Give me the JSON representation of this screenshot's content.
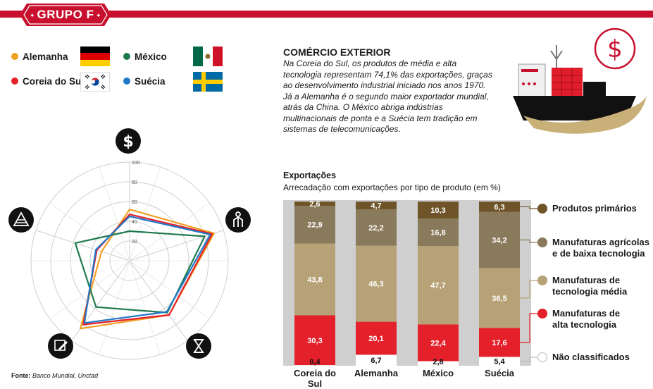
{
  "header": {
    "group_label": "GRUPO F"
  },
  "legend": [
    {
      "name": "Alemanha",
      "color": "#f0a020",
      "flag": "germany-flag"
    },
    {
      "name": "México",
      "color": "#1e7a4e",
      "flag": "mexico-flag"
    },
    {
      "name": "Coreia do Sul",
      "color": "#e4202a",
      "flag": "south-korea-flag"
    },
    {
      "name": "Suécia",
      "color": "#1f78c8",
      "flag": "sweden-flag"
    }
  ],
  "article": {
    "title": "COMÉRCIO EXTERIOR",
    "body": "Na Coreia do Sul, os produtos de média e alta tecnologia representam 74,1% das exportações, graças ao desenvolvimento industrial iniciado nos anos 1970. Já a Alemanha é o segundo maior exportador mundial, atrás da China. O México abriga indústrias multinacionais de ponta e a Suécia tem tradição em sistemas de telecomunicações."
  },
  "exports": {
    "title": "Exportações",
    "subtitle": "Arrecadação com exportações por tipo de produto (em %)"
  },
  "source": {
    "label": "Fonte:",
    "text": "Banco Mundial, Unctad"
  },
  "chart_data": [
    {
      "type": "radar",
      "axes": [
        "money-icon",
        "person-icon",
        "hourglass-icon",
        "pencil-icon",
        "pyramid-icon"
      ],
      "tick_labels": [
        "20",
        "40",
        "60",
        "80",
        "100"
      ],
      "rlim": [
        0,
        100
      ],
      "series": [
        {
          "name": "Alemanha",
          "color": "#f0a020",
          "values": [
            52,
            90,
            68,
            85,
            30
          ]
        },
        {
          "name": "Coreia do Sul",
          "color": "#e4202a",
          "values": [
            47,
            88,
            68,
            80,
            35
          ]
        },
        {
          "name": "México",
          "color": "#1e7a4e",
          "values": [
            30,
            80,
            65,
            58,
            58
          ]
        },
        {
          "name": "Suécia",
          "color": "#1f78c8",
          "values": [
            45,
            86,
            64,
            78,
            36
          ]
        }
      ]
    },
    {
      "type": "stacked-bar",
      "categories": [
        "Coreia do Sul",
        "Alemanha",
        "México",
        "Suécia"
      ],
      "ylim": [
        0,
        100
      ],
      "series": [
        {
          "name": "Não classificados",
          "color": "#ffffff",
          "values": [
            0.4,
            6.7,
            2.8,
            5.4
          ],
          "labels": [
            "0,4",
            "6,7",
            "2,8",
            "5,4"
          ]
        },
        {
          "name": "Manufaturas de alta tecnologia",
          "color": "#e4202a",
          "values": [
            30.3,
            20.1,
            22.4,
            17.6
          ],
          "labels": [
            "30,3",
            "20,1",
            "22,4",
            "17,6"
          ]
        },
        {
          "name": "Manufaturas de tecnologia média",
          "color": "#b6a276",
          "values": [
            43.8,
            46.3,
            47.7,
            36.5
          ],
          "labels": [
            "43,8",
            "46,3",
            "47,7",
            "36,5"
          ]
        },
        {
          "name": "Manufaturas agrícolas e de baixa tecnologia",
          "color": "#8a7a5c",
          "values": [
            22.9,
            22.2,
            16.8,
            34.2
          ],
          "labels": [
            "22,9",
            "22,2",
            "16,8",
            "34,2"
          ]
        },
        {
          "name": "Produtos primários",
          "color": "#6e5428",
          "values": [
            2.6,
            4.7,
            10.3,
            6.3
          ],
          "labels": [
            "2,6",
            "4,7",
            "10,3",
            "6,3"
          ]
        }
      ],
      "legend_labels": [
        {
          "line1": "Produtos primários",
          "line2": ""
        },
        {
          "line1": "Manufaturas agrícolas",
          "line2": "e de baixa tecnologia"
        },
        {
          "line1": "Manufaturas de",
          "line2": "tecnologia média"
        },
        {
          "line1": "Manufaturas de",
          "line2": "alta tecnologia"
        },
        {
          "line1": "Não classificados",
          "line2": ""
        }
      ]
    }
  ]
}
